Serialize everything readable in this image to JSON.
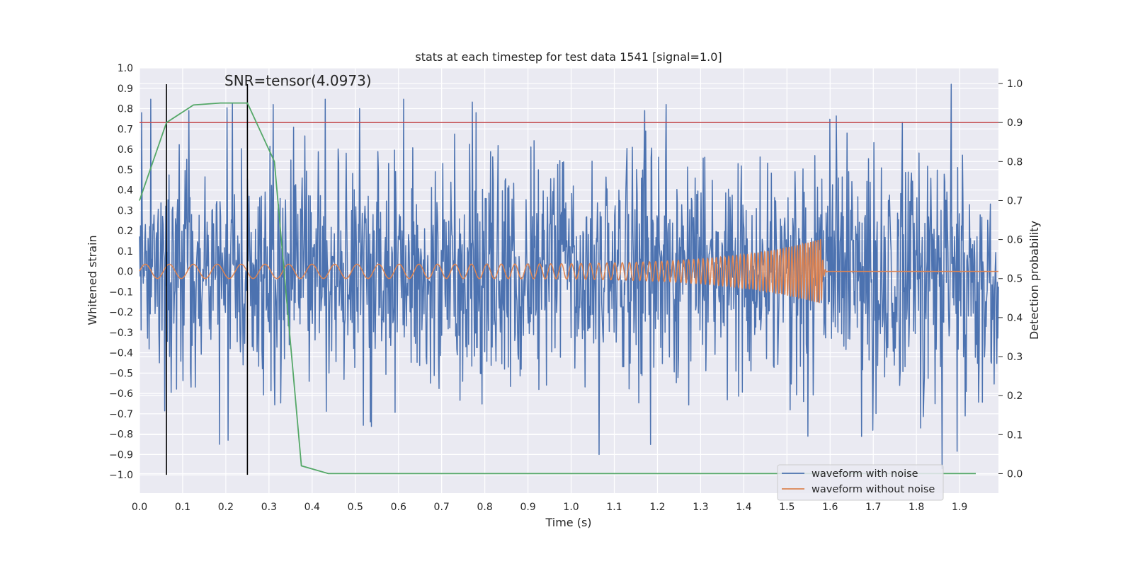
{
  "chart_data": {
    "type": "line",
    "title": "stats at each timestep for test data 1541 [signal=1.0]",
    "xlabel": "Time (s)",
    "ylabel": "Whitened strain",
    "y2label": "Detection probability",
    "xlim": [
      0.0,
      1.99
    ],
    "ylim": [
      -1.09,
      1.0
    ],
    "y2lim": [
      -0.05,
      1.04
    ],
    "xticks": [
      "0.0",
      "0.1",
      "0.2",
      "0.3",
      "0.4",
      "0.5",
      "0.6",
      "0.7",
      "0.8",
      "0.9",
      "1.0",
      "1.1",
      "1.2",
      "1.3",
      "1.4",
      "1.5",
      "1.6",
      "1.7",
      "1.8",
      "1.9"
    ],
    "yticks": [
      "1.0",
      "0.9",
      "0.8",
      "0.7",
      "0.6",
      "0.5",
      "0.4",
      "0.3",
      "0.2",
      "0.1",
      "0.0",
      "−0.1",
      "−0.2",
      "−0.3",
      "−0.4",
      "−0.5",
      "−0.6",
      "−0.7",
      "−0.8",
      "−0.9",
      "−1.0"
    ],
    "y2ticks": [
      "1.0",
      "0.9",
      "0.8",
      "0.7",
      "0.6",
      "0.5",
      "0.4",
      "0.3",
      "0.2",
      "0.1",
      "0.0"
    ],
    "grid": true,
    "legend": {
      "location": "lower-right",
      "entries": [
        "waveform with noise",
        "waveform without noise"
      ]
    },
    "annotation": "SNR=tensor(4.0973)",
    "threshold_line": {
      "axis": "right",
      "value": 0.9,
      "color": "#c44e52"
    },
    "vertical_markers": [
      {
        "x": 0.0625,
        "y_from": -1.0,
        "y_to": 0.92
      },
      {
        "x": 0.25,
        "y_from": -1.0,
        "y_to": 0.92
      }
    ],
    "series": [
      {
        "name": "waveform with noise",
        "axis": "left",
        "color": "#4c72b0",
        "generator": "noise",
        "x_range": [
          0.0,
          1.99
        ],
        "amplitude_std": 0.3,
        "range": [
          -0.97,
          0.92
        ],
        "notable_peaks": [
          {
            "x": 0.005,
            "y": 0.78
          },
          {
            "x": 0.115,
            "y": 0.79
          },
          {
            "x": 0.185,
            "y": -0.85
          },
          {
            "x": 0.205,
            "y": -0.83
          },
          {
            "x": 0.31,
            "y": 0.82
          },
          {
            "x": 0.51,
            "y": 0.8
          },
          {
            "x": 0.535,
            "y": -0.74
          },
          {
            "x": 0.78,
            "y": 0.78
          },
          {
            "x": 1.065,
            "y": -0.9
          },
          {
            "x": 1.17,
            "y": 0.79
          },
          {
            "x": 1.22,
            "y": 0.82
          },
          {
            "x": 1.81,
            "y": -0.77
          },
          {
            "x": 1.86,
            "y": -0.97
          },
          {
            "x": 1.88,
            "y": 0.92
          }
        ]
      },
      {
        "name": "waveform without noise",
        "axis": "left",
        "color": "#dd8452",
        "generator": "chirp",
        "x_range": [
          0.0,
          1.99
        ],
        "merger_time": 1.58,
        "amplitude_start": 0.035,
        "amplitude_peak": 0.16,
        "frequency_start_hz": 18,
        "frequency_end_hz": 180
      },
      {
        "name": "detection probability",
        "axis": "right",
        "color": "#55a868",
        "x": [
          0.0,
          0.0625,
          0.125,
          0.1875,
          0.25,
          0.3125,
          0.375,
          0.4375,
          0.5,
          0.5625,
          0.625,
          0.6875,
          0.75,
          0.8125,
          0.875,
          0.9375,
          1.0,
          1.0625,
          1.125,
          1.1875,
          1.25,
          1.3125,
          1.375,
          1.4375,
          1.5,
          1.5625,
          1.625,
          1.6875,
          1.75,
          1.8125,
          1.875,
          1.9375
        ],
        "y": [
          0.7,
          0.9,
          0.945,
          0.95,
          0.95,
          0.8,
          0.02,
          0.0,
          0.0,
          0.0,
          0.0,
          0.0,
          0.0,
          0.0,
          0.0,
          0.0,
          0.0,
          0.0,
          0.0,
          0.0,
          0.0,
          0.0,
          0.0,
          0.0,
          0.0,
          0.0,
          0.0,
          0.0,
          0.0,
          0.0,
          0.0,
          0.0
        ]
      }
    ]
  }
}
